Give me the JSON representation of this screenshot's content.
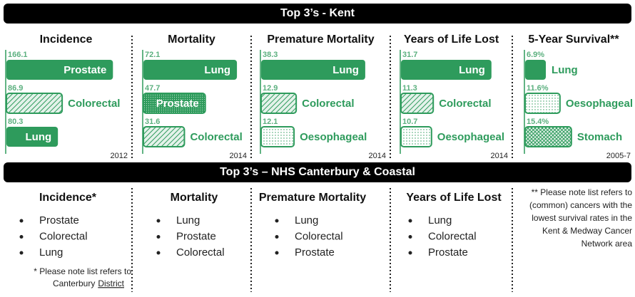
{
  "header_top": "Top 3’s - Kent",
  "chart_data": [
    {
      "type": "bar",
      "orientation": "horizontal",
      "title": "Incidence",
      "categories": [
        "Prostate",
        "Colorectal",
        "Lung"
      ],
      "values": [
        166.1,
        86.9,
        80.3
      ],
      "patterns": [
        "solid",
        "hatch",
        "solid"
      ],
      "color": "#2e9b5c",
      "xlim": [
        0,
        178
      ],
      "note": "2012"
    },
    {
      "type": "bar",
      "orientation": "horizontal",
      "title": "Mortality",
      "categories": [
        "Lung",
        "Prostate",
        "Colorectal"
      ],
      "values": [
        72.1,
        47.7,
        31.6
      ],
      "patterns": [
        "solid",
        "dense-dots",
        "hatch"
      ],
      "color": "#2e9b5c",
      "xlim": [
        0,
        88
      ],
      "note": "2014"
    },
    {
      "type": "bar",
      "orientation": "horizontal",
      "title": "Premature Mortality",
      "categories": [
        "Lung",
        "Colorectal",
        "Oesophageal"
      ],
      "values": [
        38.3,
        12.9,
        12.1
      ],
      "patterns": [
        "solid",
        "hatch",
        "sparse-dots"
      ],
      "color": "#2e9b5c",
      "xlim": [
        0,
        42
      ],
      "note": "2014"
    },
    {
      "type": "bar",
      "orientation": "horizontal",
      "title": "Years of Life Lost",
      "categories": [
        "Lung",
        "Colorectal",
        "Oesophageal"
      ],
      "values": [
        31.7,
        11.3,
        10.7
      ],
      "patterns": [
        "solid",
        "hatch",
        "sparse-dots"
      ],
      "color": "#2e9b5c",
      "xlim": [
        0,
        40
      ],
      "note": "2014"
    },
    {
      "type": "bar",
      "orientation": "horizontal",
      "title": "5-Year Survival**",
      "categories": [
        "Lung",
        "Oesophageal",
        "Stomach"
      ],
      "values": [
        6.9,
        11.6,
        15.4
      ],
      "value_labels": [
        "6.9%",
        "11.6%",
        "15.4%"
      ],
      "patterns": [
        "solid",
        "sparse-dots",
        "cross"
      ],
      "color": "#2e9b5c",
      "xlim": [
        0,
        38
      ],
      "note": "2005-7"
    }
  ],
  "header_bottom": "Top 3’s – NHS Canterbury & Coastal",
  "lists": [
    {
      "title": "Incidence*",
      "items": [
        "Prostate",
        "Colorectal",
        "Lung"
      ],
      "note_lines": [
        "* Please note list refers to",
        "Canterbury"
      ],
      "note_underline": "District"
    },
    {
      "title": "Mortality",
      "items": [
        "Lung",
        "Prostate",
        "Colorectal"
      ]
    },
    {
      "title": "Premature Mortality",
      "items": [
        "Lung",
        "Colorectal",
        "Prostate"
      ]
    },
    {
      "title": "Years of Life Lost",
      "items": [
        "Lung",
        "Colorectal",
        "Prostate"
      ]
    }
  ],
  "survival_note_lines": [
    "** Please note list refers to",
    "(common) cancers with the",
    "lowest survival rates in the",
    "Kent & Medway Cancer",
    "Network area"
  ]
}
